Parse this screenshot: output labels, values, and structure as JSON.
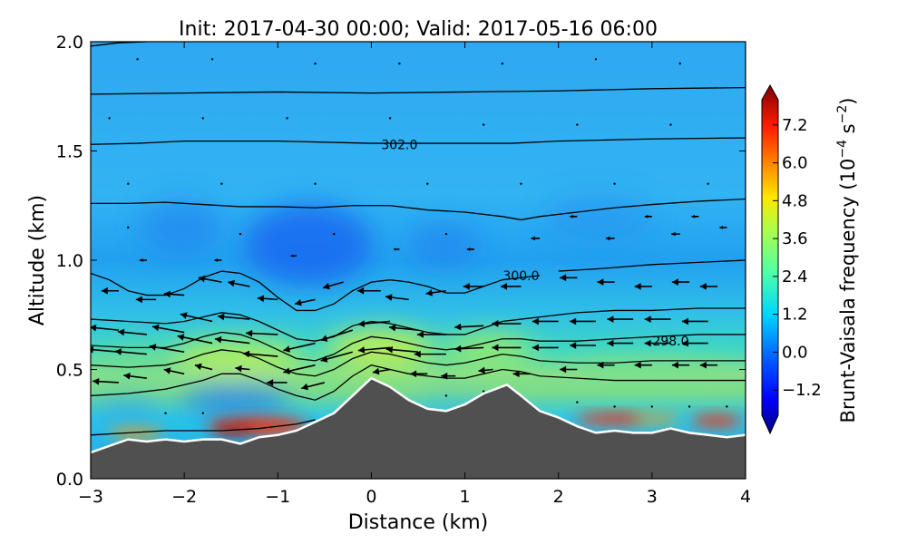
{
  "chart_data": {
    "type": "contour-section",
    "title": "Init: 2017-04-30 00:00; Valid: 2017-05-16 06:00",
    "xlabel": "Distance (km)",
    "ylabel": "Altitude (km)",
    "xlim": [
      -3,
      4
    ],
    "ylim": [
      0,
      2
    ],
    "xticks": [
      "−3",
      "−2",
      "−1",
      "0",
      "1",
      "2",
      "3",
      "4"
    ],
    "yticks": [
      "0.0",
      "0.5",
      "1.0",
      "1.5",
      "2.0"
    ],
    "colorbar": {
      "label_main": "Brunt-Vaisala frequency (10",
      "label_exp1": "−4",
      "label_mid": " s",
      "label_exp2": "−2",
      "label_end": ")",
      "ticks": [
        7.2,
        6.0,
        4.8,
        3.6,
        2.4,
        1.2,
        0.0,
        -1.2
      ],
      "tick_labels": [
        "7.2",
        "6.0",
        "4.8",
        "3.6",
        "2.4",
        "1.2",
        "0.0",
        "−1.2"
      ],
      "range": [
        -2.0,
        8.0
      ],
      "extend": "both"
    },
    "contour_labels": [
      {
        "text": "302.0",
        "x": 0.3,
        "y": 1.53
      },
      {
        "text": "300.0",
        "x": 1.6,
        "y": 0.93
      },
      {
        "text": "298.0",
        "x": 3.2,
        "y": 0.63
      }
    ],
    "terrain": [
      [
        -3.0,
        0.12
      ],
      [
        -2.8,
        0.15
      ],
      [
        -2.6,
        0.18
      ],
      [
        -2.4,
        0.17
      ],
      [
        -2.2,
        0.18
      ],
      [
        -2.0,
        0.17
      ],
      [
        -1.8,
        0.18
      ],
      [
        -1.6,
        0.18
      ],
      [
        -1.4,
        0.16
      ],
      [
        -1.2,
        0.19
      ],
      [
        -1.0,
        0.2
      ],
      [
        -0.8,
        0.22
      ],
      [
        -0.6,
        0.26
      ],
      [
        -0.4,
        0.3
      ],
      [
        -0.2,
        0.38
      ],
      [
        0.0,
        0.46
      ],
      [
        0.2,
        0.42
      ],
      [
        0.4,
        0.36
      ],
      [
        0.6,
        0.32
      ],
      [
        0.8,
        0.31
      ],
      [
        1.0,
        0.34
      ],
      [
        1.2,
        0.39
      ],
      [
        1.45,
        0.43
      ],
      [
        1.6,
        0.38
      ],
      [
        1.8,
        0.31
      ],
      [
        2.0,
        0.28
      ],
      [
        2.2,
        0.24
      ],
      [
        2.4,
        0.21
      ],
      [
        2.6,
        0.22
      ],
      [
        2.8,
        0.21
      ],
      [
        3.0,
        0.21
      ],
      [
        3.2,
        0.23
      ],
      [
        3.4,
        0.21
      ],
      [
        3.6,
        0.2
      ],
      [
        3.8,
        0.19
      ],
      [
        4.0,
        0.2
      ]
    ],
    "isentropes": [
      [
        [
          -3.0,
          1.98
        ],
        [
          -2.7,
          1.995
        ],
        [
          -2.4,
          2.0
        ]
      ],
      [
        [
          -3.0,
          1.76
        ],
        [
          -2.0,
          1.765
        ],
        [
          -1.0,
          1.77
        ],
        [
          0.0,
          1.765
        ],
        [
          1.0,
          1.77
        ],
        [
          2.0,
          1.775
        ],
        [
          3.0,
          1.785
        ],
        [
          4.0,
          1.79
        ]
      ],
      [
        [
          -3.0,
          1.53
        ],
        [
          -2.5,
          1.535
        ],
        [
          -2.0,
          1.545
        ],
        [
          -1.0,
          1.545
        ],
        [
          0.0,
          1.535
        ],
        [
          0.5,
          1.535
        ],
        [
          1.0,
          1.535
        ],
        [
          1.5,
          1.535
        ],
        [
          2.0,
          1.545
        ],
        [
          2.5,
          1.55
        ],
        [
          3.0,
          1.555
        ],
        [
          4.0,
          1.56
        ]
      ],
      [
        [
          -3.0,
          1.26
        ],
        [
          -2.6,
          1.26
        ],
        [
          -2.2,
          1.265
        ],
        [
          -1.8,
          1.255
        ],
        [
          -1.4,
          1.245
        ],
        [
          -1.0,
          1.245
        ],
        [
          -0.6,
          1.24
        ],
        [
          -0.2,
          1.25
        ],
        [
          0.2,
          1.25
        ],
        [
          0.6,
          1.23
        ],
        [
          1.0,
          1.22
        ],
        [
          1.4,
          1.2
        ],
        [
          1.6,
          1.185
        ],
        [
          1.8,
          1.2
        ],
        [
          2.2,
          1.22
        ],
        [
          2.6,
          1.24
        ],
        [
          3.0,
          1.255
        ],
        [
          3.5,
          1.27
        ],
        [
          4.0,
          1.28
        ]
      ],
      [
        [
          -3.0,
          0.94
        ],
        [
          -2.8,
          0.91
        ],
        [
          -2.6,
          0.86
        ],
        [
          -2.4,
          0.84
        ],
        [
          -2.2,
          0.84
        ],
        [
          -2.0,
          0.87
        ],
        [
          -1.8,
          0.92
        ],
        [
          -1.6,
          0.95
        ],
        [
          -1.4,
          0.94
        ],
        [
          -1.2,
          0.9
        ],
        [
          -1.0,
          0.83
        ],
        [
          -0.8,
          0.77
        ],
        [
          -0.6,
          0.77
        ],
        [
          -0.4,
          0.8
        ],
        [
          -0.2,
          0.86
        ],
        [
          0.0,
          0.9
        ],
        [
          0.2,
          0.91
        ],
        [
          0.4,
          0.9
        ],
        [
          0.6,
          0.88
        ],
        [
          0.8,
          0.85
        ],
        [
          1.0,
          0.85
        ],
        [
          1.2,
          0.88
        ],
        [
          1.4,
          0.91
        ],
        [
          1.6,
          0.92
        ],
        [
          1.8,
          0.93
        ]
      ],
      [
        [
          2.0,
          0.95
        ],
        [
          2.4,
          0.96
        ],
        [
          3.0,
          0.98
        ],
        [
          3.5,
          0.99
        ],
        [
          4.0,
          1.0
        ]
      ],
      [
        [
          -3.0,
          0.73
        ],
        [
          -2.6,
          0.72
        ],
        [
          -2.2,
          0.71
        ],
        [
          -2.0,
          0.72
        ],
        [
          -1.8,
          0.74
        ],
        [
          -1.6,
          0.76
        ],
        [
          -1.4,
          0.75
        ],
        [
          -1.2,
          0.72
        ],
        [
          -1.0,
          0.68
        ],
        [
          -0.8,
          0.64
        ],
        [
          -0.6,
          0.63
        ],
        [
          -0.4,
          0.65
        ],
        [
          -0.2,
          0.7
        ],
        [
          0.0,
          0.72
        ],
        [
          0.2,
          0.71
        ],
        [
          0.4,
          0.69
        ],
        [
          0.6,
          0.67
        ],
        [
          0.8,
          0.66
        ],
        [
          1.0,
          0.66
        ],
        [
          1.2,
          0.69
        ],
        [
          1.4,
          0.72
        ],
        [
          1.6,
          0.73
        ],
        [
          1.8,
          0.74
        ],
        [
          2.2,
          0.76
        ],
        [
          2.6,
          0.77
        ],
        [
          3.0,
          0.77
        ],
        [
          3.5,
          0.78
        ],
        [
          4.0,
          0.78
        ]
      ],
      [
        [
          -3.0,
          0.61
        ],
        [
          -2.6,
          0.6
        ],
        [
          -2.2,
          0.6
        ],
        [
          -2.0,
          0.62
        ],
        [
          -1.8,
          0.65
        ],
        [
          -1.6,
          0.67
        ],
        [
          -1.4,
          0.66
        ],
        [
          -1.2,
          0.63
        ],
        [
          -1.0,
          0.59
        ],
        [
          -0.8,
          0.55
        ],
        [
          -0.6,
          0.54
        ],
        [
          -0.4,
          0.57
        ],
        [
          -0.2,
          0.62
        ],
        [
          0.0,
          0.65
        ],
        [
          0.2,
          0.64
        ],
        [
          0.4,
          0.62
        ],
        [
          0.6,
          0.6
        ],
        [
          0.8,
          0.59
        ],
        [
          1.0,
          0.6
        ],
        [
          1.2,
          0.62
        ],
        [
          1.4,
          0.64
        ],
        [
          1.6,
          0.64
        ],
        [
          1.8,
          0.63
        ],
        [
          2.2,
          0.63
        ],
        [
          2.6,
          0.64
        ],
        [
          3.0,
          0.65
        ],
        [
          3.5,
          0.66
        ],
        [
          4.0,
          0.66
        ]
      ],
      [
        [
          -3.0,
          0.52
        ],
        [
          -2.6,
          0.51
        ],
        [
          -2.2,
          0.52
        ],
        [
          -2.0,
          0.54
        ],
        [
          -1.8,
          0.57
        ],
        [
          -1.6,
          0.59
        ],
        [
          -1.4,
          0.58
        ],
        [
          -1.2,
          0.55
        ],
        [
          -1.0,
          0.51
        ],
        [
          -0.8,
          0.48
        ],
        [
          -0.6,
          0.47
        ],
        [
          -0.4,
          0.5
        ],
        [
          -0.2,
          0.55
        ],
        [
          0.0,
          0.58
        ],
        [
          0.2,
          0.57
        ],
        [
          0.4,
          0.55
        ],
        [
          0.6,
          0.53
        ],
        [
          0.8,
          0.52
        ],
        [
          1.0,
          0.53
        ],
        [
          1.2,
          0.55
        ],
        [
          1.4,
          0.57
        ],
        [
          1.6,
          0.56
        ],
        [
          1.8,
          0.54
        ],
        [
          2.2,
          0.53
        ],
        [
          2.6,
          0.53
        ],
        [
          3.0,
          0.54
        ],
        [
          3.5,
          0.54
        ],
        [
          4.0,
          0.54
        ]
      ],
      [
        [
          -3.0,
          0.38
        ],
        [
          -2.6,
          0.39
        ],
        [
          -2.2,
          0.41
        ],
        [
          -2.0,
          0.43
        ],
        [
          -1.8,
          0.45
        ],
        [
          -1.6,
          0.48
        ],
        [
          -1.4,
          0.48
        ],
        [
          -1.2,
          0.45
        ],
        [
          -1.0,
          0.41
        ],
        [
          -0.8,
          0.38
        ],
        [
          -0.6,
          0.36
        ],
        [
          -0.4,
          0.4
        ],
        [
          -0.2,
          0.47
        ],
        [
          0.0,
          0.52
        ],
        [
          0.2,
          0.5
        ],
        [
          0.4,
          0.48
        ],
        [
          0.6,
          0.47
        ],
        [
          0.8,
          0.46
        ],
        [
          1.0,
          0.46
        ],
        [
          1.2,
          0.48
        ],
        [
          1.4,
          0.5
        ],
        [
          1.6,
          0.49
        ],
        [
          1.8,
          0.47
        ],
        [
          2.2,
          0.46
        ],
        [
          2.6,
          0.45
        ],
        [
          3.0,
          0.45
        ],
        [
          3.5,
          0.45
        ],
        [
          4.0,
          0.45
        ]
      ],
      [
        [
          -3.0,
          0.2
        ],
        [
          -2.6,
          0.21
        ],
        [
          -2.2,
          0.22
        ],
        [
          -2.0,
          0.22
        ],
        [
          -1.8,
          0.22
        ],
        [
          -1.6,
          0.22
        ],
        [
          -1.2,
          0.23
        ],
        [
          -0.8,
          0.25
        ],
        [
          -0.6,
          0.27
        ]
      ]
    ],
    "wind_vectors": [
      [
        -2.7,
        0.86,
        -0.12,
        0.0
      ],
      [
        -2.3,
        0.82,
        -0.14,
        0.0
      ],
      [
        -2.0,
        0.84,
        -0.14,
        0.01
      ],
      [
        -1.6,
        0.9,
        -0.16,
        0.03
      ],
      [
        -1.3,
        0.88,
        -0.15,
        0.03
      ],
      [
        -1.0,
        0.82,
        -0.14,
        0.01
      ],
      [
        -0.6,
        0.82,
        -0.14,
        -0.03
      ],
      [
        -0.3,
        0.9,
        -0.14,
        -0.04
      ],
      [
        0.1,
        0.86,
        -0.16,
        0.0
      ],
      [
        0.4,
        0.82,
        -0.16,
        0.02
      ],
      [
        0.8,
        0.86,
        -0.14,
        -0.02
      ],
      [
        1.2,
        0.88,
        -0.14,
        0.0
      ],
      [
        1.6,
        0.88,
        -0.14,
        0.0
      ],
      [
        2.2,
        0.92,
        -0.12,
        0.0
      ],
      [
        2.6,
        0.9,
        -0.12,
        0.0
      ],
      [
        3.0,
        0.88,
        -0.12,
        0.0
      ],
      [
        3.4,
        0.9,
        -0.12,
        0.0
      ],
      [
        3.7,
        0.88,
        -0.12,
        0.0
      ],
      [
        -2.7,
        0.68,
        -0.2,
        0.02
      ],
      [
        -2.4,
        0.66,
        -0.2,
        0.02
      ],
      [
        -2.0,
        0.67,
        -0.22,
        0.04
      ],
      [
        -1.7,
        0.72,
        -0.22,
        0.05
      ],
      [
        -1.3,
        0.73,
        -0.22,
        0.02
      ],
      [
        -1.0,
        0.66,
        -0.22,
        0.01
      ],
      [
        -0.6,
        0.62,
        -0.22,
        -0.05
      ],
      [
        -0.2,
        0.68,
        -0.22,
        -0.07
      ],
      [
        0.2,
        0.72,
        -0.22,
        -0.02
      ],
      [
        0.5,
        0.68,
        -0.2,
        0.02
      ],
      [
        0.8,
        0.66,
        -0.2,
        0.0
      ],
      [
        1.2,
        0.7,
        -0.2,
        -0.01
      ],
      [
        1.6,
        0.71,
        -0.2,
        0.0
      ],
      [
        2.0,
        0.72,
        -0.18,
        0.0
      ],
      [
        2.4,
        0.72,
        -0.18,
        0.0
      ],
      [
        2.8,
        0.73,
        -0.18,
        0.0
      ],
      [
        3.2,
        0.73,
        -0.18,
        0.0
      ],
      [
        3.6,
        0.72,
        -0.18,
        0.0
      ],
      [
        -2.7,
        0.58,
        -0.22,
        0.02
      ],
      [
        -2.4,
        0.57,
        -0.22,
        0.02
      ],
      [
        -2.0,
        0.58,
        -0.24,
        0.04
      ],
      [
        -1.7,
        0.62,
        -0.24,
        0.05
      ],
      [
        -1.3,
        0.62,
        -0.24,
        0.03
      ],
      [
        -1.0,
        0.56,
        -0.24,
        0.02
      ],
      [
        -0.6,
        0.52,
        -0.22,
        -0.05
      ],
      [
        -0.2,
        0.58,
        -0.22,
        -0.06
      ],
      [
        0.2,
        0.6,
        -0.22,
        -0.02
      ],
      [
        0.5,
        0.58,
        -0.22,
        0.02
      ],
      [
        0.8,
        0.57,
        -0.22,
        0.0
      ],
      [
        1.2,
        0.6,
        -0.2,
        -0.01
      ],
      [
        1.6,
        0.6,
        -0.2,
        0.0
      ],
      [
        2.0,
        0.6,
        -0.18,
        0.0
      ],
      [
        2.4,
        0.61,
        -0.18,
        0.0
      ],
      [
        2.8,
        0.62,
        -0.18,
        0.0
      ],
      [
        3.2,
        0.62,
        -0.18,
        0.0
      ],
      [
        3.6,
        0.62,
        -0.18,
        0.0
      ],
      [
        -2.7,
        0.44,
        -0.18,
        0.01
      ],
      [
        -2.4,
        0.46,
        -0.16,
        0.02
      ],
      [
        -2.0,
        0.48,
        -0.14,
        0.03
      ],
      [
        -1.7,
        0.5,
        -0.12,
        0.03
      ],
      [
        -1.3,
        0.5,
        -0.1,
        0.01
      ],
      [
        -0.9,
        0.44,
        -0.14,
        0.0
      ],
      [
        -0.5,
        0.44,
        -0.16,
        -0.04
      ],
      [
        0.2,
        0.5,
        -0.12,
        -0.02
      ],
      [
        0.6,
        0.48,
        -0.12,
        0.0
      ],
      [
        0.9,
        0.47,
        -0.1,
        0.0
      ],
      [
        1.3,
        0.5,
        -0.1,
        -0.01
      ],
      [
        1.7,
        0.48,
        -0.12,
        0.0
      ],
      [
        2.2,
        0.5,
        -0.12,
        0.0
      ],
      [
        2.6,
        0.52,
        -0.12,
        0.0
      ],
      [
        3.0,
        0.52,
        -0.12,
        0.0
      ],
      [
        3.4,
        0.52,
        -0.12,
        0.0
      ],
      [
        3.7,
        0.52,
        -0.12,
        0.0
      ],
      [
        -2.4,
        1.0,
        -0.05,
        0.0
      ],
      [
        -1.6,
        1.0,
        -0.05,
        0.0
      ],
      [
        -0.8,
        1.02,
        -0.04,
        0.0
      ],
      [
        0.3,
        1.05,
        -0.04,
        0.0
      ],
      [
        1.1,
        1.05,
        -0.05,
        0.0
      ],
      [
        1.8,
        1.1,
        -0.06,
        0.0
      ],
      [
        2.6,
        1.1,
        -0.06,
        0.0
      ],
      [
        3.3,
        1.12,
        -0.06,
        0.0
      ],
      [
        3.8,
        1.15,
        -0.05,
        0.0
      ],
      [
        2.2,
        1.2,
        -0.05,
        0.0
      ],
      [
        3.0,
        1.2,
        -0.05,
        0.0
      ],
      [
        3.5,
        1.2,
        -0.05,
        0.0
      ]
    ],
    "colors": {
      "terrain": "#505050",
      "terrain_edge": "#ffffff",
      "contour": "#000000"
    }
  }
}
